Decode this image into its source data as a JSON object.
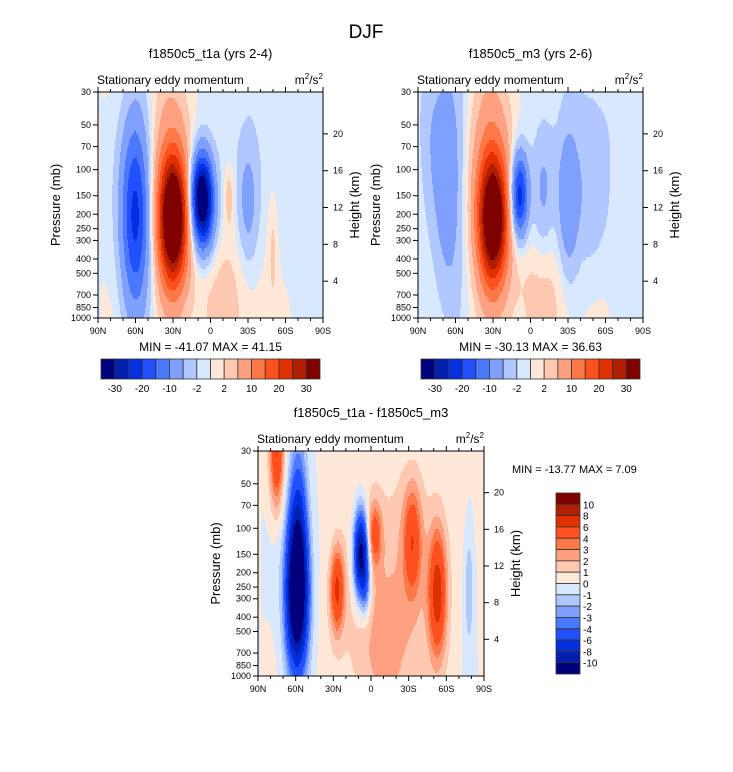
{
  "title": "DJF",
  "chart_data": [
    {
      "type": "heatmap",
      "title": "f1850c5_t1a (yrs 2-4)",
      "subtitle_left": "Stationary eddy momentum",
      "units": "m2/s2",
      "ylabel": "Pressure (mb)",
      "ylabel_right": "Height (km)",
      "x_ticks": [
        "90N",
        "60N",
        "30N",
        "0",
        "30S",
        "60S",
        "90S"
      ],
      "y_ticks": [
        30,
        50,
        70,
        100,
        150,
        200,
        250,
        300,
        400,
        500,
        700,
        850,
        1000
      ],
      "y_right_ticks": [
        4,
        8,
        12,
        16,
        20
      ],
      "xlim": [
        90,
        -90
      ],
      "ylim": [
        1000,
        30
      ],
      "min_max_text": "MIN = -41.07  MAX =  41.15",
      "levels": [
        -30,
        -25,
        -20,
        -15,
        -10,
        -5,
        -2,
        0,
        2,
        5,
        10,
        15,
        20,
        25,
        30
      ],
      "level_labels": [
        "-30",
        "-20",
        "-10",
        "-2",
        "2",
        "10",
        "20",
        "30"
      ],
      "colorbar": "horizontal",
      "features": [
        {
          "lat": 60,
          "p": 200,
          "amp": -22,
          "slat": 8,
          "slogp": 0.45
        },
        {
          "lat": 30,
          "p": 220,
          "amp": 40,
          "slat": 8,
          "slogp": 0.3
        },
        {
          "lat": 32,
          "p": 120,
          "amp": 8,
          "slat": 10,
          "slogp": 0.5
        },
        {
          "lat": 7,
          "p": 150,
          "amp": -36,
          "slat": 6,
          "slogp": 0.2
        },
        {
          "lat": 5,
          "p": 230,
          "amp": -8,
          "slat": 7,
          "slogp": 0.2
        },
        {
          "lat": -15,
          "p": 150,
          "amp": 4,
          "slat": 3,
          "slogp": 0.15
        },
        {
          "lat": -30,
          "p": 170,
          "amp": -7,
          "slat": 6,
          "slogp": 0.3
        },
        {
          "lat": -50,
          "p": 300,
          "amp": 3,
          "slat": 3,
          "slogp": 0.3
        },
        {
          "lat": -10,
          "p": 700,
          "amp": 3,
          "slat": 20,
          "slogp": 0.4
        },
        {
          "lat": -60,
          "p": 60,
          "amp": -1.5,
          "slat": 40,
          "slogp": 0.6
        }
      ]
    },
    {
      "type": "heatmap",
      "title": "f1850c5_m3 (yrs 2-6)",
      "subtitle_left": "Stationary eddy momentum",
      "units": "m2/s2",
      "ylabel": "Pressure (mb)",
      "ylabel_right": "Height (km)",
      "x_ticks": [
        "90N",
        "60N",
        "30N",
        "0",
        "30S",
        "60S",
        "90S"
      ],
      "y_ticks": [
        30,
        50,
        70,
        100,
        150,
        200,
        250,
        300,
        400,
        500,
        700,
        850,
        1000
      ],
      "y_right_ticks": [
        4,
        8,
        12,
        16,
        20
      ],
      "xlim": [
        90,
        -90
      ],
      "ylim": [
        1000,
        30
      ],
      "min_max_text": "MIN = -30.13  MAX =  36.63",
      "levels": [
        -30,
        -25,
        -20,
        -15,
        -10,
        -5,
        -2,
        0,
        2,
        5,
        10,
        15,
        20,
        25,
        30
      ],
      "level_labels": [
        "-30",
        "-20",
        "-10",
        "-2",
        "2",
        "10",
        "20",
        "30"
      ],
      "colorbar": "horizontal",
      "features": [
        {
          "lat": 65,
          "p": 120,
          "amp": -8,
          "slat": 9,
          "slogp": 0.6
        },
        {
          "lat": 30,
          "p": 220,
          "amp": 36,
          "slat": 8,
          "slogp": 0.3
        },
        {
          "lat": 32,
          "p": 120,
          "amp": 10,
          "slat": 11,
          "slogp": 0.5
        },
        {
          "lat": 9,
          "p": 150,
          "amp": -24,
          "slat": 5,
          "slogp": 0.2
        },
        {
          "lat": -10,
          "p": 150,
          "amp": -5,
          "slat": 6,
          "slogp": 0.3
        },
        {
          "lat": -30,
          "p": 170,
          "amp": -9,
          "slat": 6,
          "slogp": 0.35
        },
        {
          "lat": -45,
          "p": 150,
          "amp": -3,
          "slat": 10,
          "slogp": 0.4
        },
        {
          "lat": 80,
          "p": 50,
          "amp": -3,
          "slat": 8,
          "slogp": 0.4
        },
        {
          "lat": -10,
          "p": 700,
          "amp": 3,
          "slat": 20,
          "slogp": 0.4
        },
        {
          "lat": -60,
          "p": 60,
          "amp": -1.5,
          "slat": 40,
          "slogp": 0.6
        }
      ]
    },
    {
      "type": "heatmap",
      "title": "f1850c5_t1a - f1850c5_m3",
      "subtitle_left": "Stationary eddy momentum",
      "units": "m2/s2",
      "ylabel": "Pressure (mb)",
      "ylabel_right": "Height (km)",
      "x_ticks": [
        "90N",
        "60N",
        "30N",
        "0",
        "30S",
        "60S",
        "90S"
      ],
      "y_ticks": [
        30,
        50,
        70,
        100,
        150,
        200,
        250,
        300,
        400,
        500,
        700,
        850,
        1000
      ],
      "y_right_ticks": [
        4,
        8,
        12,
        16,
        20
      ],
      "xlim": [
        90,
        -90
      ],
      "ylim": [
        1000,
        30
      ],
      "min_max_text": "MIN = -13.77  MAX =  7.09",
      "levels": [
        -10,
        -8,
        -6,
        -4,
        -3,
        -2,
        -1,
        0,
        1,
        2,
        3,
        4,
        6,
        8,
        10
      ],
      "level_labels": [
        "-10",
        "-8",
        "-6",
        "-4",
        "-3",
        "-2",
        "-1",
        "0",
        "1",
        "2",
        "3",
        "4",
        "6",
        "8",
        "10"
      ],
      "colorbar": "vertical",
      "features": [
        {
          "lat": 59,
          "p": 280,
          "amp": -15,
          "slat": 6,
          "slogp": 0.35
        },
        {
          "lat": 58,
          "p": 90,
          "amp": -5,
          "slat": 5,
          "slogp": 0.4
        },
        {
          "lat": 75,
          "p": 32,
          "amp": 6,
          "slat": 4,
          "slogp": 0.25
        },
        {
          "lat": 27,
          "p": 260,
          "amp": 6,
          "slat": 4,
          "slogp": 0.2
        },
        {
          "lat": 8,
          "p": 150,
          "amp": -12,
          "slat": 4,
          "slogp": 0.2
        },
        {
          "lat": 4,
          "p": 250,
          "amp": -3,
          "slat": 3,
          "slogp": 0.15
        },
        {
          "lat": -3,
          "p": 110,
          "amp": 4,
          "slat": 4,
          "slogp": 0.15
        },
        {
          "lat": -33,
          "p": 120,
          "amp": 4.5,
          "slat": 5,
          "slogp": 0.25
        },
        {
          "lat": -53,
          "p": 270,
          "amp": 6.5,
          "slat": 5,
          "slogp": 0.3
        },
        {
          "lat": -20,
          "p": 200,
          "amp": 1.5,
          "slat": 30,
          "slogp": 0.6
        },
        {
          "lat": -78,
          "p": 250,
          "amp": -2,
          "slat": 3,
          "slogp": 0.3
        },
        {
          "lat": -10,
          "p": 700,
          "amp": 1.5,
          "slat": 20,
          "slogp": 0.4
        }
      ]
    }
  ],
  "colors": [
    "#00007f",
    "#0020b0",
    "#0030e0",
    "#2050ff",
    "#4a78ff",
    "#80a0ff",
    "#b0c8ff",
    "#d8e8ff",
    "#ffe8d8",
    "#ffc8b0",
    "#ffa080",
    "#ff7848",
    "#ff5020",
    "#e03000",
    "#b02000",
    "#800000"
  ]
}
